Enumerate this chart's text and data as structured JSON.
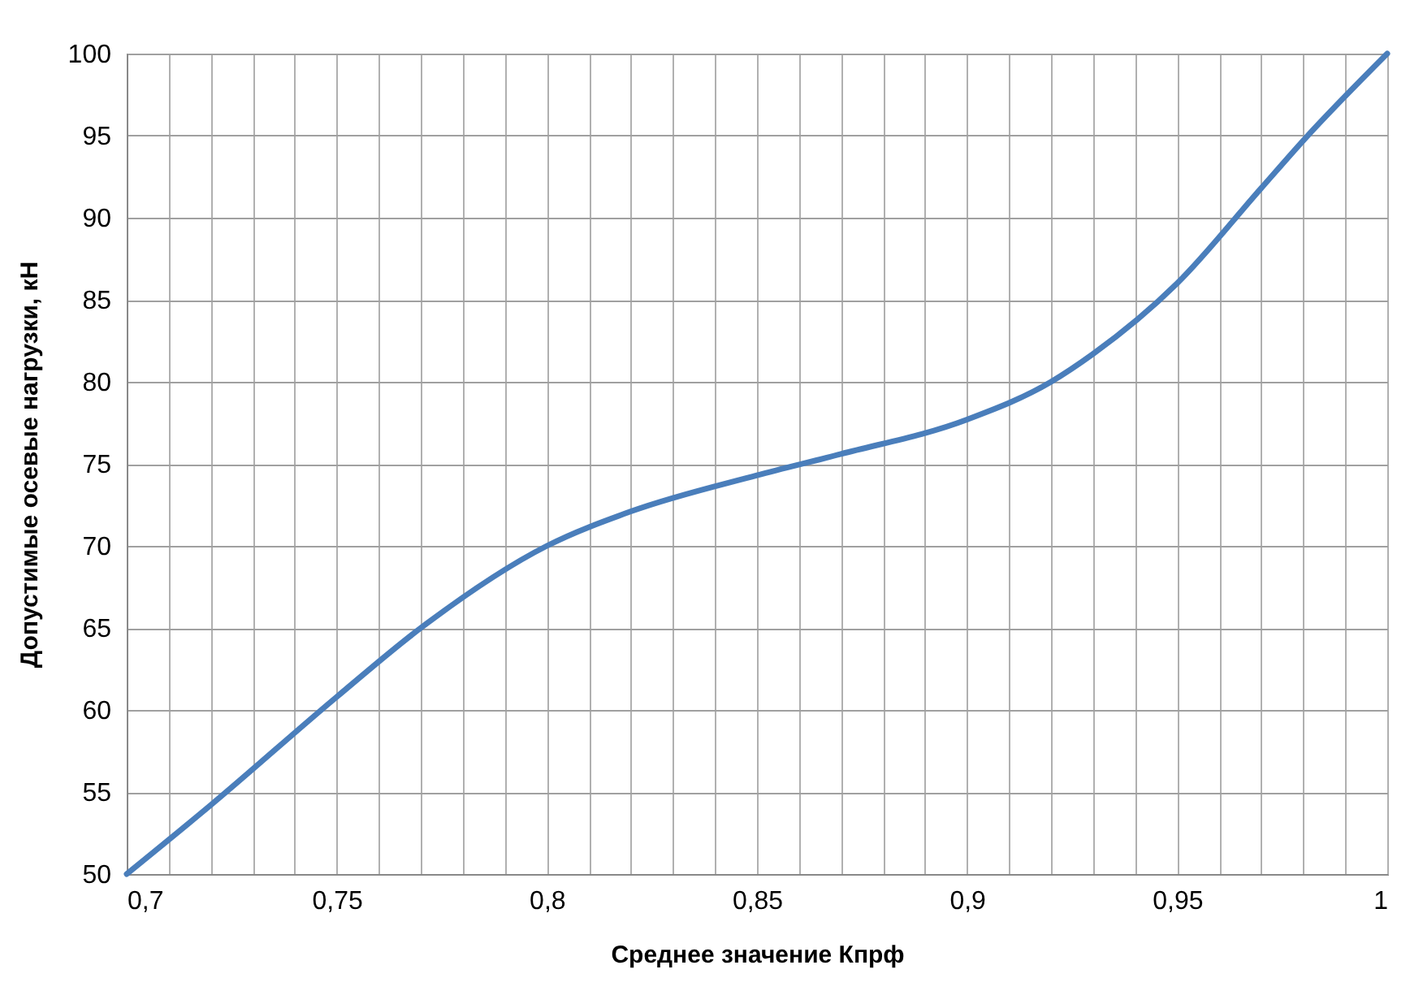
{
  "chart_data": {
    "type": "line",
    "xlabel": "Среднее значение Кпрф",
    "ylabel": "Допустимые осевые нагрузки, кН",
    "x": [
      0.7,
      0.72,
      0.75,
      0.77,
      0.8,
      0.82,
      0.85,
      0.87,
      0.9,
      0.92,
      0.93,
      0.95,
      0.97,
      0.98,
      1.0
    ],
    "series": [
      {
        "color": "#4a7ebb",
        "values": [
          50,
          54.2,
          60.8,
          65.0,
          70.0,
          72.1,
          74.3,
          75.6,
          77.7,
          80.0,
          81.7,
          86.0,
          91.8,
          94.7,
          100
        ]
      }
    ],
    "xlim": [
      0.7,
      1.0
    ],
    "ylim": [
      50,
      100
    ],
    "xticks": [
      {
        "value": 0.7,
        "label": "0,7"
      },
      {
        "value": 0.71,
        "label": null
      },
      {
        "value": 0.72,
        "label": null
      },
      {
        "value": 0.73,
        "label": null
      },
      {
        "value": 0.74,
        "label": null
      },
      {
        "value": 0.75,
        "label": "0,75"
      },
      {
        "value": 0.76,
        "label": null
      },
      {
        "value": 0.77,
        "label": null
      },
      {
        "value": 0.78,
        "label": null
      },
      {
        "value": 0.79,
        "label": null
      },
      {
        "value": 0.8,
        "label": "0,8"
      },
      {
        "value": 0.81,
        "label": null
      },
      {
        "value": 0.82,
        "label": null
      },
      {
        "value": 0.83,
        "label": null
      },
      {
        "value": 0.84,
        "label": null
      },
      {
        "value": 0.85,
        "label": "0,85"
      },
      {
        "value": 0.86,
        "label": null
      },
      {
        "value": 0.87,
        "label": null
      },
      {
        "value": 0.88,
        "label": null
      },
      {
        "value": 0.89,
        "label": null
      },
      {
        "value": 0.9,
        "label": "0,9"
      },
      {
        "value": 0.91,
        "label": null
      },
      {
        "value": 0.92,
        "label": null
      },
      {
        "value": 0.93,
        "label": null
      },
      {
        "value": 0.94,
        "label": null
      },
      {
        "value": 0.95,
        "label": "0,95"
      },
      {
        "value": 0.96,
        "label": null
      },
      {
        "value": 0.97,
        "label": null
      },
      {
        "value": 0.98,
        "label": null
      },
      {
        "value": 0.99,
        "label": null
      },
      {
        "value": 1.0,
        "label": "1"
      }
    ],
    "yticks": [
      50,
      55,
      60,
      65,
      70,
      75,
      80,
      85,
      90,
      95,
      100
    ],
    "grid": true,
    "marker": "none",
    "line_style": "solid"
  }
}
